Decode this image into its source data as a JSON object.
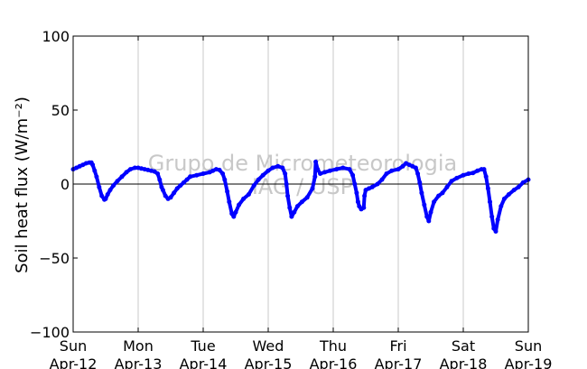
{
  "chart_data": {
    "type": "scatter",
    "ylabel": "Soil heat flux (W/m⁻²)",
    "ylim": [
      -100,
      100
    ],
    "yticks": [
      100,
      50,
      0,
      -50,
      -100
    ],
    "y_tick_labels": [
      "100",
      "50",
      "0",
      "−50",
      "−100"
    ],
    "xlim": [
      0,
      7
    ],
    "xticks": [
      {
        "day": "Sun",
        "date": "Apr-12"
      },
      {
        "day": "Mon",
        "date": "Apr-13"
      },
      {
        "day": "Tue",
        "date": "Apr-14"
      },
      {
        "day": "Wed",
        "date": "Apr-15"
      },
      {
        "day": "Thu",
        "date": "Apr-16"
      },
      {
        "day": "Fri",
        "date": "Apr-17"
      },
      {
        "day": "Sat",
        "date": "Apr-18"
      },
      {
        "day": "Sun",
        "date": "Apr-19"
      }
    ],
    "grid": "vertical",
    "zero_line": true,
    "watermark": [
      "Grupo de Micrometeorologia",
      "IAG / USP"
    ],
    "series": [
      {
        "color": "#0000ff",
        "points": [
          [
            0.0,
            10
          ],
          [
            0.05,
            11
          ],
          [
            0.1,
            12
          ],
          [
            0.15,
            13
          ],
          [
            0.2,
            14
          ],
          [
            0.25,
            14.5
          ],
          [
            0.28,
            14.5
          ],
          [
            0.3,
            13
          ],
          [
            0.33,
            9
          ],
          [
            0.36,
            5
          ],
          [
            0.4,
            -2
          ],
          [
            0.44,
            -8
          ],
          [
            0.48,
            -10.5
          ],
          [
            0.5,
            -10
          ],
          [
            0.53,
            -7
          ],
          [
            0.57,
            -4
          ],
          [
            0.62,
            -1
          ],
          [
            0.68,
            2
          ],
          [
            0.75,
            5
          ],
          [
            0.82,
            8
          ],
          [
            0.88,
            10
          ],
          [
            0.95,
            11
          ],
          [
            1.0,
            11
          ],
          [
            1.05,
            10.5
          ],
          [
            1.1,
            10
          ],
          [
            1.15,
            9.5
          ],
          [
            1.2,
            9
          ],
          [
            1.25,
            8.5
          ],
          [
            1.3,
            7
          ],
          [
            1.33,
            3
          ],
          [
            1.36,
            -2
          ],
          [
            1.38,
            -4
          ],
          [
            1.42,
            -8
          ],
          [
            1.46,
            -10
          ],
          [
            1.5,
            -9
          ],
          [
            1.55,
            -6
          ],
          [
            1.6,
            -3
          ],
          [
            1.65,
            -1
          ],
          [
            1.7,
            1
          ],
          [
            1.75,
            3
          ],
          [
            1.8,
            5
          ],
          [
            1.9,
            6
          ],
          [
            2.0,
            7
          ],
          [
            2.1,
            8
          ],
          [
            2.15,
            9
          ],
          [
            2.2,
            10
          ],
          [
            2.25,
            9.5
          ],
          [
            2.3,
            7
          ],
          [
            2.33,
            3
          ],
          [
            2.37,
            -5
          ],
          [
            2.4,
            -12
          ],
          [
            2.44,
            -20
          ],
          [
            2.47,
            -22
          ],
          [
            2.5,
            -19
          ],
          [
            2.55,
            -14
          ],
          [
            2.62,
            -10
          ],
          [
            2.7,
            -7
          ],
          [
            2.78,
            -1
          ],
          [
            2.85,
            3
          ],
          [
            2.92,
            6
          ],
          [
            3.0,
            9
          ],
          [
            3.07,
            11
          ],
          [
            3.15,
            12
          ],
          [
            3.22,
            11
          ],
          [
            3.26,
            7
          ],
          [
            3.28,
            0
          ],
          [
            3.3,
            -8
          ],
          [
            3.33,
            -16
          ],
          [
            3.36,
            -22
          ],
          [
            3.4,
            -19
          ],
          [
            3.45,
            -15
          ],
          [
            3.52,
            -12
          ],
          [
            3.6,
            -9
          ],
          [
            3.68,
            -3
          ],
          [
            3.72,
            5
          ],
          [
            3.73,
            15
          ],
          [
            3.76,
            10
          ],
          [
            3.8,
            7
          ],
          [
            3.87,
            8
          ],
          [
            3.95,
            9
          ],
          [
            4.05,
            10
          ],
          [
            4.15,
            11
          ],
          [
            4.25,
            10
          ],
          [
            4.3,
            6
          ],
          [
            4.33,
            0
          ],
          [
            4.36,
            -6
          ],
          [
            4.38,
            -12
          ],
          [
            4.4,
            -15
          ],
          [
            4.43,
            -17
          ],
          [
            4.47,
            -16
          ],
          [
            4.48,
            -8
          ],
          [
            4.5,
            -4
          ],
          [
            4.55,
            -3
          ],
          [
            4.6,
            -2
          ],
          [
            4.68,
            0
          ],
          [
            4.75,
            3
          ],
          [
            4.82,
            7
          ],
          [
            4.9,
            9
          ],
          [
            5.0,
            10
          ],
          [
            5.07,
            12
          ],
          [
            5.12,
            14
          ],
          [
            5.17,
            13
          ],
          [
            5.22,
            12
          ],
          [
            5.27,
            11
          ],
          [
            5.3,
            7
          ],
          [
            5.33,
            1
          ],
          [
            5.36,
            -6
          ],
          [
            5.4,
            -14
          ],
          [
            5.44,
            -22
          ],
          [
            5.47,
            -25
          ],
          [
            5.5,
            -19
          ],
          [
            5.55,
            -12
          ],
          [
            5.62,
            -8
          ],
          [
            5.68,
            -6
          ],
          [
            5.75,
            -2
          ],
          [
            5.82,
            2
          ],
          [
            5.9,
            4
          ],
          [
            6.0,
            6
          ],
          [
            6.08,
            7
          ],
          [
            6.15,
            7.5
          ],
          [
            6.22,
            9
          ],
          [
            6.28,
            10
          ],
          [
            6.32,
            10
          ],
          [
            6.35,
            5
          ],
          [
            6.38,
            -3
          ],
          [
            6.41,
            -12
          ],
          [
            6.44,
            -22
          ],
          [
            6.47,
            -30
          ],
          [
            6.5,
            -32
          ],
          [
            6.53,
            -24
          ],
          [
            6.58,
            -15
          ],
          [
            6.63,
            -10
          ],
          [
            6.7,
            -7
          ],
          [
            6.78,
            -4
          ],
          [
            6.85,
            -2
          ],
          [
            6.92,
            1
          ],
          [
            7.0,
            3
          ]
        ]
      }
    ]
  }
}
